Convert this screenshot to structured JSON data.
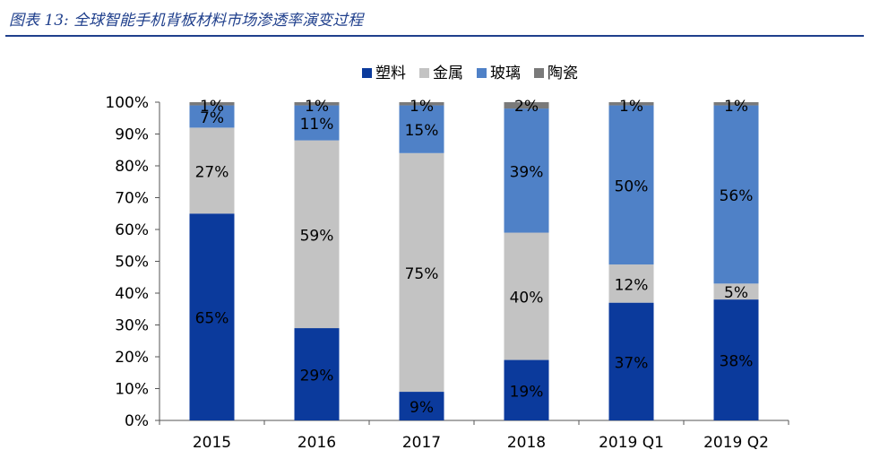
{
  "figure_title": "图表 13:  全球智能手机背板材料市场渗透率演变过程",
  "colors": {
    "title": "#1f3f8c",
    "塑料": "#0b3a9c",
    "金属": "#c3c3c3",
    "玻璃": "#4f81c7",
    "陶瓷": "#7a7a7a"
  },
  "chart_data": {
    "type": "bar",
    "stacked": true,
    "title": "",
    "xlabel": "",
    "ylabel": "",
    "ylim": [
      0,
      100
    ],
    "y_ticks": [
      "0%",
      "10%",
      "20%",
      "30%",
      "40%",
      "50%",
      "60%",
      "70%",
      "80%",
      "90%",
      "100%"
    ],
    "legend_position": "top",
    "categories": [
      "2015",
      "2016",
      "2017",
      "2018",
      "2019 Q1",
      "2019 Q2"
    ],
    "series": [
      {
        "name": "塑料",
        "color": "#0b3a9c",
        "values": [
          65,
          29,
          9,
          19,
          37,
          38
        ],
        "labels": [
          "65%",
          "29%",
          "9%",
          "19%",
          "37%",
          "38%"
        ]
      },
      {
        "name": "金属",
        "color": "#c3c3c3",
        "values": [
          27,
          59,
          75,
          40,
          12,
          5
        ],
        "labels": [
          "27%",
          "59%",
          "75%",
          "40%",
          "12%",
          "5%"
        ]
      },
      {
        "name": "玻璃",
        "color": "#4f81c7",
        "values": [
          7,
          11,
          15,
          39,
          50,
          56
        ],
        "labels": [
          "7%",
          "11%",
          "15%",
          "39%",
          "50%",
          "56%"
        ]
      },
      {
        "name": "陶瓷",
        "color": "#7a7a7a",
        "values": [
          1,
          1,
          1,
          2,
          1,
          1
        ],
        "labels": [
          "1%",
          "1%",
          "1%",
          "2%",
          "1%",
          "1%"
        ]
      }
    ]
  }
}
